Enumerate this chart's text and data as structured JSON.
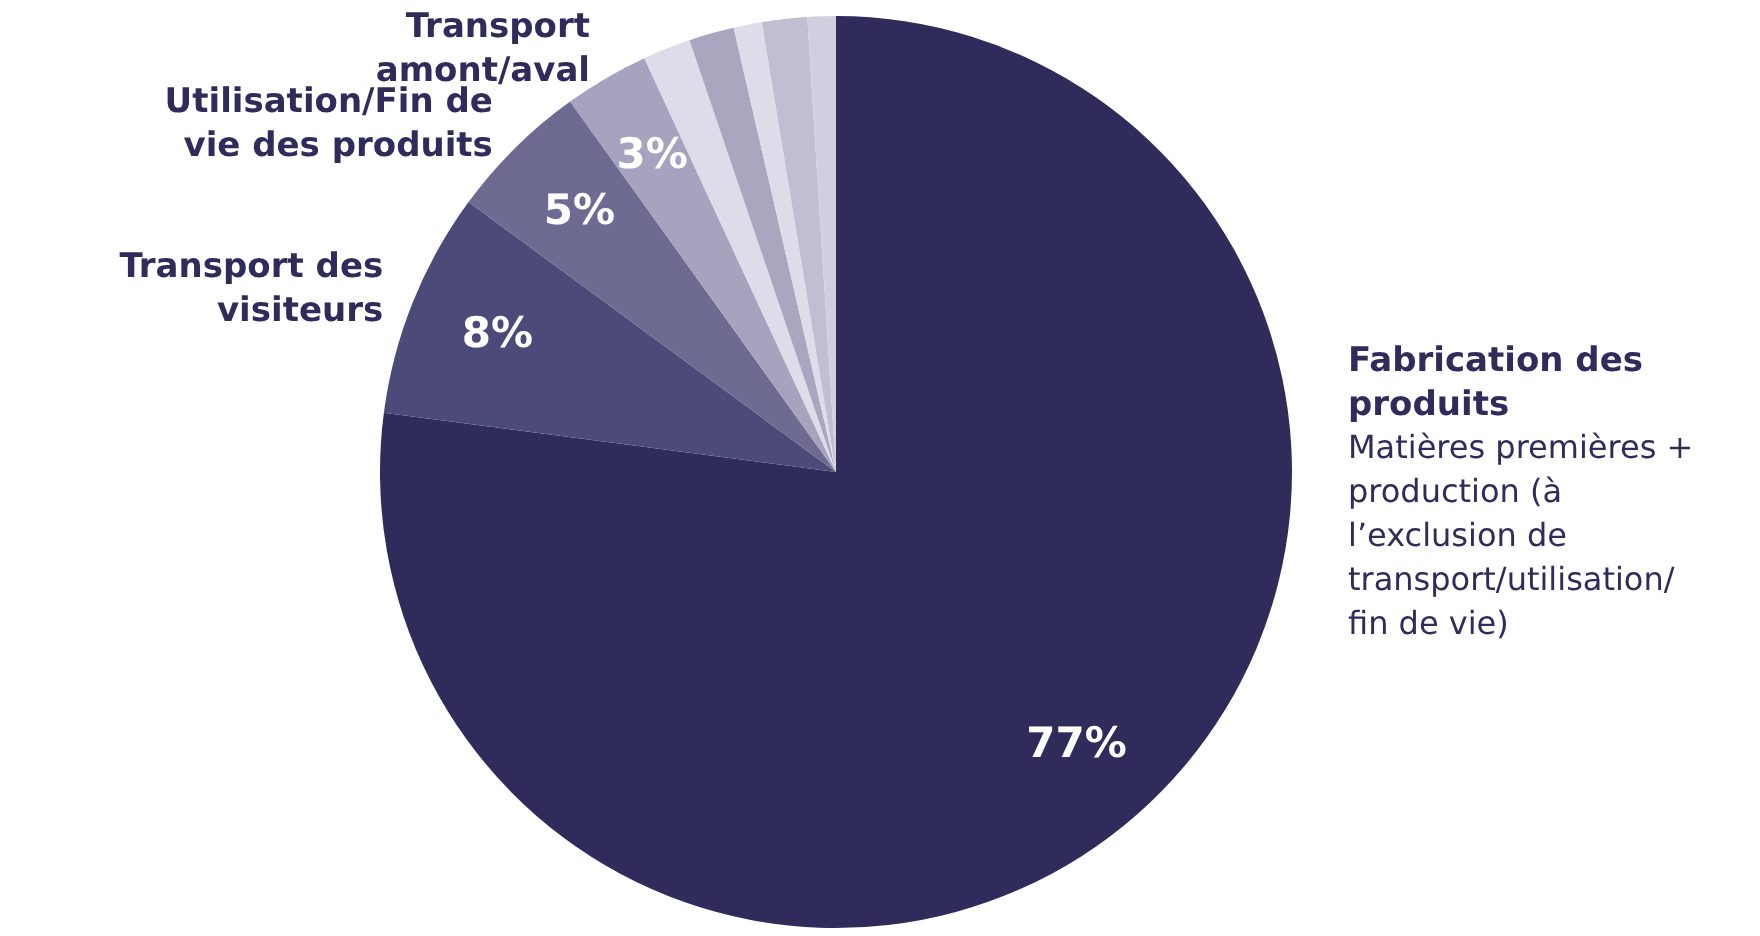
{
  "chart_data": {
    "type": "pie",
    "categories": [
      "Fabrication des produits",
      "Transport des visiteurs",
      "Utilisation/Fin de vie des produits",
      "Transport amont/aval",
      null,
      null,
      null,
      null,
      null
    ],
    "values": [
      77,
      8,
      5,
      3,
      1.7,
      1.6,
      1.0,
      1.6,
      1.0
    ],
    "value_labels": [
      "77%",
      "8%",
      "5%",
      "3%",
      null,
      null,
      null,
      null,
      null
    ],
    "colors": [
      "#2f2c5c",
      "#4b4a78",
      "#6d6b92",
      "#a5a3bd",
      "#dddce8",
      "#a8a7bf",
      "#dddce8",
      "#c0bfd2",
      "#d0cfe0"
    ],
    "annotations": [
      "Matières premières + production (à l’exclusion de transport/utilisation/ fin de vie)"
    ],
    "legend": false
  }
}
